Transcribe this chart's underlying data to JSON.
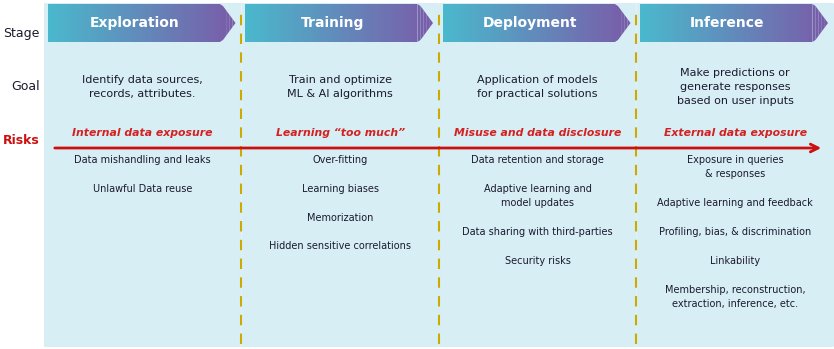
{
  "stages": [
    "Exploration",
    "Training",
    "Deployment",
    "Inference"
  ],
  "goals": [
    "Identify data sources,\nrecords, attributes.",
    "Train and optimize\nML & AI algorithms",
    "Application of models\nfor practical solutions",
    "Make predictions or\ngenerate responses\nbased on user inputs"
  ],
  "risk_labels": [
    "Internal data exposure",
    "Learning “too much”",
    "Misuse and data disclosure",
    "External data exposure"
  ],
  "sub_risks": [
    "Data mishandling and leaks\n\nUnlawful Data reuse",
    "Over-fitting\n\nLearning biases\n\nMemorization\n\nHidden sensitive correlations",
    "Data retention and storage\n\nAdaptive learning and\nmodel updates\n\nData sharing with third-parties\n\nSecurity risks",
    "Exposure in queries\n& responses\n\nAdaptive learning and feedback\n\nProfiling, bias, & discrimination\n\nLinkability\n\nMembership, reconstruction,\nextraction, inference, etc."
  ],
  "panel_bg": "#d8eef5",
  "text_color": "#1a1a2e",
  "risk_text_color": "#d42020",
  "dashed_color": "#ccaa00",
  "arrow_red": "#cc1010",
  "arrow_teal_start": "#4ab8cc",
  "arrow_purple_end": "#7a5aa8",
  "stage_text_color": "#ffffff",
  "label_color_stage": "#1a1a2e",
  "label_color_goal": "#1a1a2e",
  "label_color_risks": "#cc1010"
}
